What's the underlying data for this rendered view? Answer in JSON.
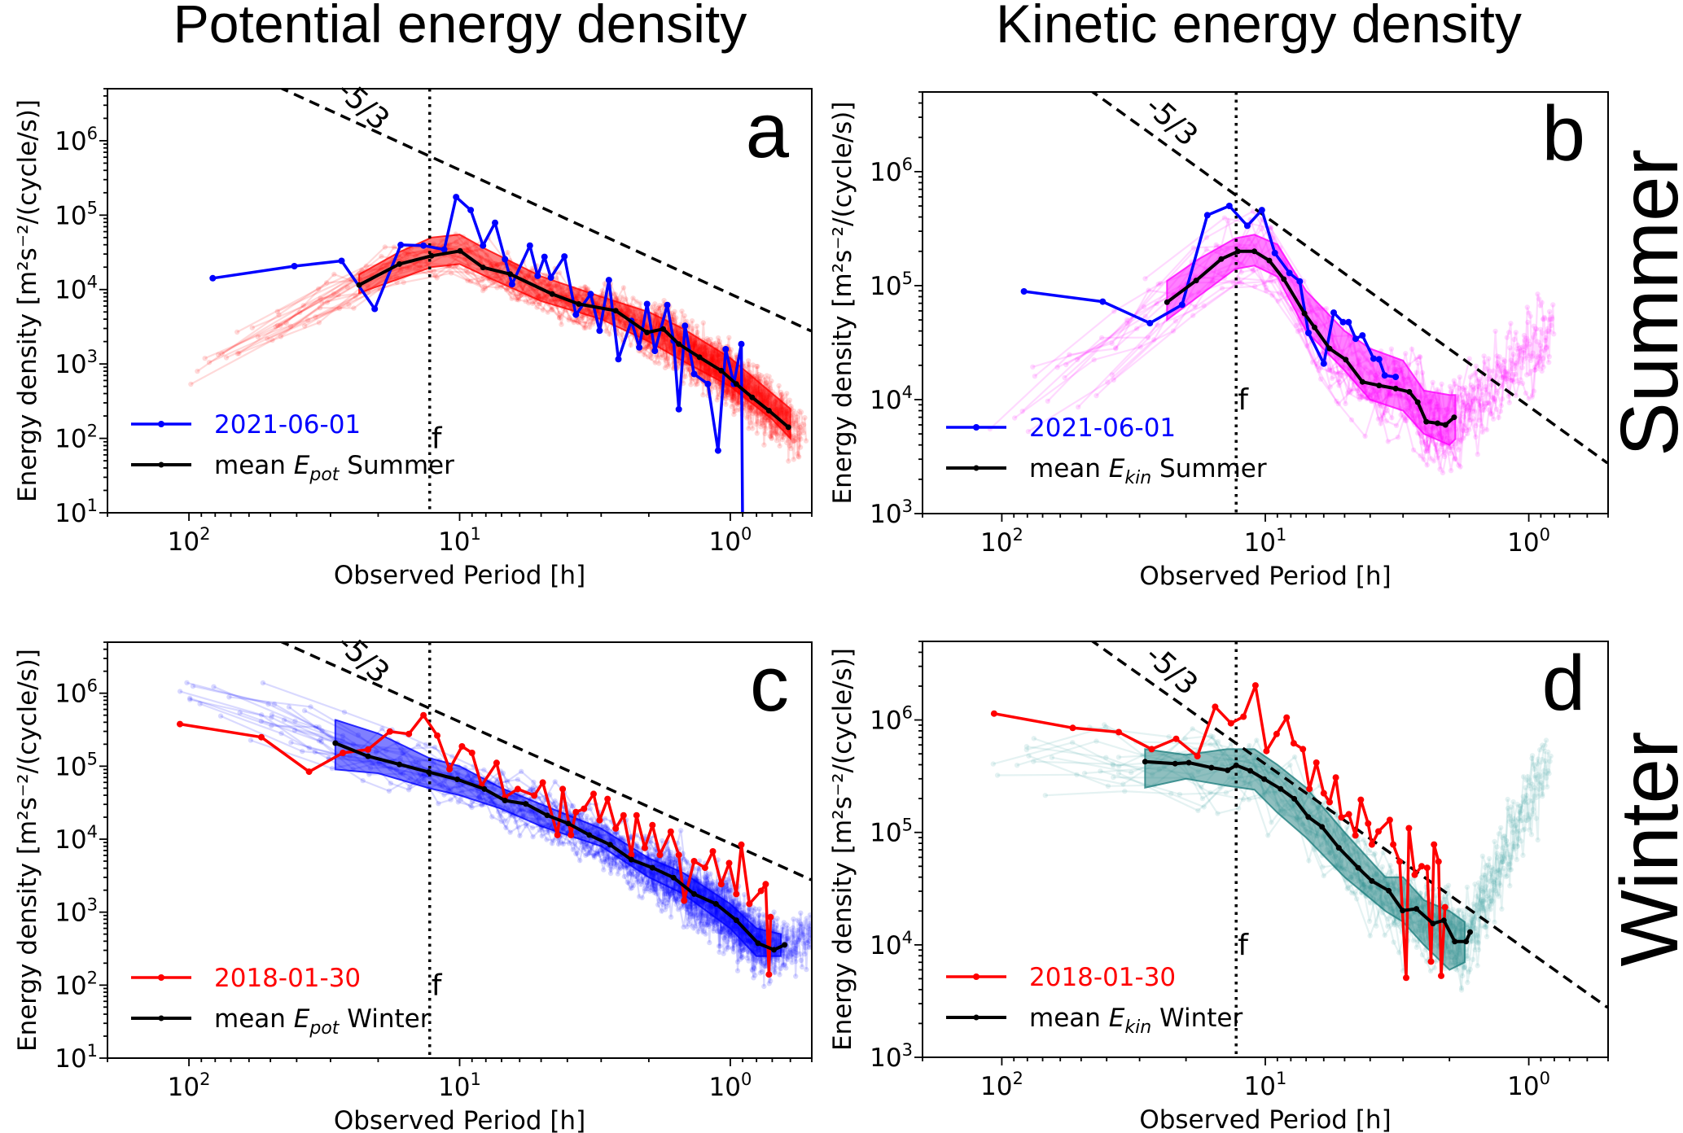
{
  "titles": {
    "left": "Potential energy density",
    "right": "Kinetic energy density"
  },
  "row_labels": {
    "top": "Summer",
    "bottom": "Winter"
  },
  "chart_data": [
    {
      "type": "line",
      "panel_label": "a",
      "xlabel": "Observed Period [h]",
      "ylabel": "Energy density [m²s⁻²/(cycle/s)]",
      "x_scale": "log",
      "x_reversed": true,
      "xlim": [
        200,
        0.5
      ],
      "y_scale": "log",
      "ylim": [
        10,
        5000000
      ],
      "xticks": [
        100,
        10,
        1
      ],
      "yticks": [
        10,
        100,
        1000,
        10000,
        100000,
        1000000
      ],
      "grid": false,
      "legend_placement": "lower-left",
      "colors": {
        "ensemble": "#ff0000",
        "band": "#ff0000",
        "highlight": "#0000ff",
        "mean": "#000000"
      },
      "legend": {
        "highlight": "2021-06-01",
        "mean_prefix": "mean ",
        "mean_symbol": "E",
        "mean_subscript": "pot",
        "mean_suffix": " Summer"
      },
      "inertial_period": {
        "label": "f",
        "x": 12.9
      },
      "reference_line": {
        "label": "-5/3",
        "slope": "-5/3",
        "through": [
          0.5,
          2750
        ]
      },
      "highlight": {
        "x": [
          81.7,
          40.8,
          27.3,
          20.6,
          16.5,
          13.6,
          11.4,
          10.3,
          9.1,
          8.2,
          7.4,
          6.8,
          6.4,
          5.5,
          5.15,
          4.86,
          4.6,
          4.1,
          3.72,
          3.28,
          3.04,
          2.81,
          2.59,
          2.32,
          2.17,
          2.03,
          1.9,
          1.71,
          1.62,
          1.55,
          1.47,
          1.36,
          1.21,
          1.11,
          1.04,
          0.97,
          0.91,
          0.9
        ],
        "y": [
          14200,
          20600,
          24300,
          5500,
          39800,
          39000,
          34500,
          175000,
          117000,
          39000,
          79000,
          25600,
          11800,
          39000,
          15300,
          27500,
          14500,
          27800,
          4600,
          8700,
          2800,
          13400,
          1160,
          3800,
          1670,
          6400,
          1500,
          6200,
          2050,
          246,
          3260,
          733,
          538,
          68.5,
          1580,
          538,
          1850,
          5
        ]
      },
      "mean": {
        "x": [
          23.5,
          16.7,
          12.7,
          9.96,
          8.2,
          6.5,
          4.55,
          3.63,
          2.65,
          2.03,
          1.77,
          1.55,
          1.3,
          1.08,
          0.95,
          0.83,
          0.72,
          0.61
        ],
        "y": [
          11500,
          22000,
          28400,
          33000,
          19800,
          16100,
          8700,
          6400,
          5200,
          2650,
          2950,
          1850,
          1230,
          813,
          538,
          356,
          236,
          141
        ]
      },
      "band": {
        "x": [
          23.5,
          16.7,
          12.7,
          10,
          8,
          5,
          3,
          2,
          1.5,
          1,
          0.7,
          0.6
        ],
        "upper": [
          16000,
          32000,
          50000,
          55000,
          35000,
          15000,
          8000,
          5000,
          3000,
          1200,
          400,
          250
        ],
        "lower": [
          9000,
          14000,
          20000,
          22000,
          15000,
          7000,
          4000,
          2000,
          1100,
          500,
          180,
          100
        ]
      }
    },
    {
      "type": "line",
      "panel_label": "b",
      "xlabel": "Observed Period [h]",
      "ylabel": "Energy density [m²s⁻²/(cycle/s)]",
      "x_scale": "log",
      "x_reversed": true,
      "xlim": [
        200,
        0.5
      ],
      "y_scale": "log",
      "ylim": [
        1000,
        5000000
      ],
      "xticks": [
        100,
        10,
        1
      ],
      "yticks": [
        1000,
        10000,
        100000,
        1000000
      ],
      "grid": false,
      "legend_placement": "lower-left",
      "colors": {
        "ensemble": "#ff00ff",
        "band": "#ff00ff",
        "highlight": "#0000ff",
        "mean": "#000000"
      },
      "legend": {
        "highlight": "2021-06-01",
        "mean_prefix": "mean ",
        "mean_symbol": "E",
        "mean_subscript": "kin",
        "mean_suffix": " Summer"
      },
      "inertial_period": {
        "label": "f",
        "x": 12.9
      },
      "reference_line": {
        "label": "-5/3",
        "slope": "-5/3",
        "through": [
          0.5,
          2750
        ]
      },
      "highlight": {
        "x": [
          82.4,
          41.4,
          27.4,
          20.7,
          16.6,
          13.7,
          11.7,
          10.3,
          9.2,
          8.1,
          7.4,
          6.86,
          6.0,
          5.5,
          5.07,
          4.83,
          4.54,
          4.28,
          3.88,
          3.7,
          3.52,
          3.2
        ],
        "y": [
          89000,
          72400,
          46900,
          68000,
          415000,
          500000,
          335000,
          460000,
          193000,
          129000,
          109000,
          38500,
          20700,
          58000,
          47800,
          47800,
          34200,
          36600,
          22900,
          22600,
          16300,
          15800
        ]
      },
      "mean": {
        "x": [
          23.6,
          18.3,
          14.7,
          12.7,
          11.0,
          9.66,
          8.5,
          7.1,
          6.5,
          5.7,
          4.95,
          4.28,
          3.7,
          3.2,
          2.84,
          2.64,
          2.45,
          2.22,
          2.07,
          1.92
        ],
        "y": [
          71500,
          111000,
          171000,
          200000,
          200000,
          166000,
          114000,
          57000,
          43000,
          28000,
          22400,
          14300,
          13300,
          12500,
          11700,
          9500,
          6400,
          6200,
          6000,
          7000
        ]
      },
      "band": {
        "x": [
          23.6,
          18,
          13,
          11,
          9,
          7,
          5,
          4,
          3,
          2.5,
          2,
          1.9
        ],
        "upper": [
          110000,
          170000,
          260000,
          280000,
          230000,
          90000,
          40000,
          28000,
          22000,
          12000,
          11000,
          11000
        ],
        "lower": [
          50000,
          80000,
          140000,
          150000,
          120000,
          40000,
          18000,
          10000,
          8000,
          5000,
          4000,
          4500
        ]
      }
    },
    {
      "type": "line",
      "panel_label": "c",
      "xlabel": "Observed Period [h]",
      "ylabel": "Energy density [m²s⁻²/(cycle/s)]",
      "x_scale": "log",
      "x_reversed": true,
      "xlim": [
        200,
        0.5
      ],
      "y_scale": "log",
      "ylim": [
        10,
        5000000
      ],
      "xticks": [
        100,
        10,
        1
      ],
      "yticks": [
        10,
        100,
        1000,
        10000,
        100000,
        1000000
      ],
      "grid": false,
      "legend_placement": "lower-left",
      "colors": {
        "ensemble": "#0000ff",
        "band": "#0000ff",
        "highlight": "#ff0000",
        "mean": "#000000"
      },
      "legend": {
        "highlight": "2018-01-30",
        "mean_prefix": "mean ",
        "mean_symbol": "E",
        "mean_subscript": "pot",
        "mean_suffix": " Winter"
      },
      "inertial_period": {
        "label": "f",
        "x": 12.9
      },
      "reference_line": {
        "label": "-5/3",
        "slope": "-5/3",
        "through": [
          0.5,
          2750
        ]
      },
      "highlight": {
        "x": [
          108,
          54,
          36,
          27,
          21.8,
          18.1,
          15.4,
          13.6,
          12.1,
          10.9,
          9.8,
          9.0,
          8.3,
          7.3,
          6.8,
          6.1,
          5.3,
          4.93,
          4.35,
          4.16,
          3.88,
          3.72,
          3.47,
          3.2,
          3.04,
          2.84,
          2.65,
          2.48,
          2.32,
          2.22,
          2.07,
          1.94,
          1.82,
          1.66,
          1.55,
          1.48,
          1.36,
          1.24,
          1.16,
          1.08,
          1.01,
          0.95,
          0.91,
          0.85,
          0.77,
          0.74,
          0.72,
          0.71
        ],
        "y": [
          378000,
          250000,
          84000,
          152000,
          169000,
          298000,
          277000,
          500000,
          263000,
          91000,
          187000,
          152000,
          54000,
          111000,
          37600,
          48700,
          39600,
          59800,
          11400,
          48700,
          11400,
          23500,
          26100,
          41700,
          18200,
          35600,
          14000,
          21200,
          6100,
          21200,
          7600,
          15600,
          6100,
          12700,
          6100,
          1440,
          5000,
          4060,
          6800,
          2420,
          4700,
          1770,
          8400,
          1300,
          1960,
          2420,
          140,
          857
        ]
      },
      "mean": {
        "x": [
          28.8,
          21.8,
          16.7,
          13.0,
          10.2,
          8.1,
          6.8,
          5.7,
          4.75,
          3.97,
          3.32,
          2.78,
          2.32,
          1.94,
          1.62,
          1.36,
          1.13,
          0.95,
          0.79,
          0.69,
          0.63
        ],
        "y": [
          207000,
          137000,
          106000,
          83000,
          66000,
          48700,
          33900,
          30500,
          21200,
          16400,
          11400,
          8400,
          5250,
          4060,
          2970,
          1770,
          1300,
          774,
          375,
          305,
          356
        ]
      },
      "band": {
        "x": [
          28.8,
          28.7,
          20,
          13,
          10,
          7,
          5,
          3,
          2,
          1.5,
          1,
          0.8,
          0.65
        ],
        "upper": [
          430000,
          430000,
          280000,
          130000,
          100000,
          50000,
          30000,
          14000,
          5500,
          3500,
          1300,
          600,
          500
        ],
        "lower": [
          90000,
          90000,
          80000,
          50000,
          40000,
          26000,
          15000,
          8000,
          3000,
          1800,
          600,
          250,
          250
        ]
      }
    },
    {
      "type": "line",
      "panel_label": "d",
      "xlabel": "Observed Period [h]",
      "ylabel": "Energy density [m²s⁻²/(cycle/s)]",
      "x_scale": "log",
      "x_reversed": true,
      "xlim": [
        200,
        0.5
      ],
      "y_scale": "log",
      "ylim": [
        1000,
        5000000
      ],
      "xticks": [
        100,
        10,
        1
      ],
      "yticks": [
        1000,
        10000,
        100000,
        1000000
      ],
      "grid": false,
      "legend_placement": "lower-left",
      "colors": {
        "ensemble": "#4aa8a8",
        "band": "#1f8080",
        "highlight": "#ff0000",
        "mean": "#000000"
      },
      "legend": {
        "highlight": "2018-01-30",
        "mean_prefix": "mean ",
        "mean_symbol": "E",
        "mean_subscript": "kin",
        "mean_suffix": " Winter"
      },
      "inertial_period": {
        "label": "f",
        "x": 12.9
      },
      "reference_line": {
        "label": "-5/3",
        "slope": "-5/3",
        "through": [
          0.5,
          2750
        ]
      },
      "highlight": {
        "x": [
          107,
          53.8,
          36,
          27,
          21.8,
          18.1,
          15.5,
          13.5,
          12.1,
          10.9,
          9.9,
          9.06,
          8.3,
          7.8,
          7.2,
          6.8,
          6.4,
          6.0,
          5.7,
          5.4,
          5.14,
          4.82,
          4.55,
          4.34,
          4.07,
          3.94,
          3.72,
          3.37,
          3.27,
          3.09,
          2.92,
          2.85,
          2.71,
          2.55,
          2.43,
          2.35,
          2.29,
          2.2,
          2.15,
          2.08
        ],
        "y": [
          1140000,
          850000,
          780000,
          550000,
          680000,
          477000,
          1310000,
          935000,
          1070000,
          2030000,
          530000,
          750000,
          1050000,
          620000,
          550000,
          244000,
          417000,
          223000,
          186000,
          308000,
          136000,
          145000,
          94000,
          195000,
          120000,
          78000,
          102000,
          129000,
          78000,
          55000,
          5100,
          109000,
          42000,
          50000,
          48400,
          7100,
          78000,
          55000,
          5300,
          21600
        ]
      },
      "mean": {
        "x": [
          28.6,
          22,
          19.5,
          16.0,
          13.9,
          12.9,
          11.4,
          10.1,
          8.75,
          7.76,
          6.87,
          6.09,
          5.26,
          4.44,
          3.94,
          3.4,
          3.01,
          2.67,
          2.31,
          2.1,
          1.91,
          1.73,
          1.67
        ],
        "y": [
          426000,
          409000,
          417000,
          377000,
          357000,
          395000,
          353000,
          298000,
          244000,
          199000,
          137000,
          112000,
          73000,
          48400,
          37000,
          30300,
          20200,
          20900,
          15500,
          16500,
          10700,
          10700,
          13000
        ]
      },
      "band": {
        "x": [
          28.6,
          20,
          14,
          11,
          9,
          7,
          5,
          3.5,
          3,
          2.5,
          2,
          1.75
        ],
        "upper": [
          550000,
          490000,
          550000,
          550000,
          400000,
          250000,
          100000,
          40000,
          40000,
          25000,
          20000,
          16000
        ],
        "lower": [
          250000,
          300000,
          260000,
          240000,
          150000,
          90000,
          40000,
          20000,
          16000,
          10000,
          6000,
          7000
        ]
      }
    }
  ]
}
